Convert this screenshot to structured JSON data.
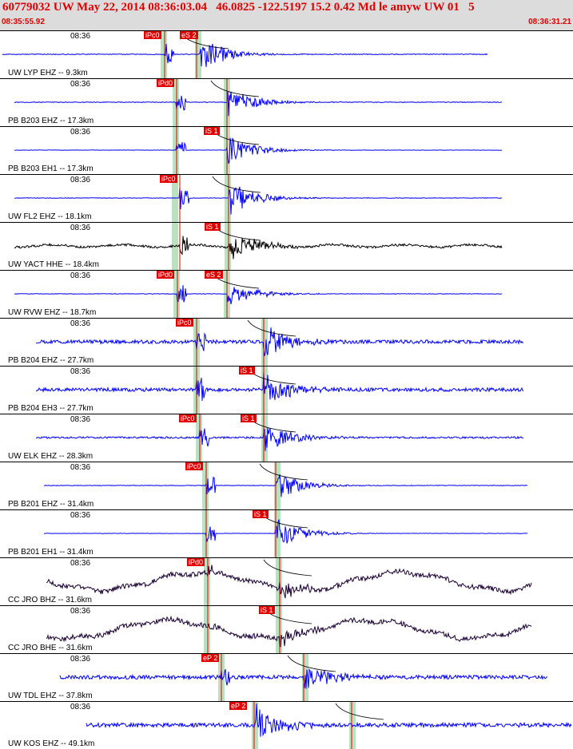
{
  "header": {
    "title": "60779032 UW May 22, 2014 08:36:03.04   46.0825 -122.5197 15.2 0.42 Md le amyw UW 01   5",
    "start_time": "08:35:55.92",
    "end_time": "08:36:31.21"
  },
  "colors": {
    "trace": "#0000ff",
    "trace_alt": "#000000",
    "trace_dark": "#1a0033",
    "pick": "#e00000",
    "window": "#b9e3c0",
    "header_bg": "#dcdcdc"
  },
  "panels": [
    {
      "time": "08:36",
      "label": "UW LYP EHZ -- 9.3km",
      "color": "trace",
      "picks": [
        "iPc0",
        "eS 2"
      ]
    },
    {
      "time": "08:36",
      "label": "PB B203 EHZ -- 17.3km",
      "color": "trace",
      "picks": [
        "iPd0"
      ]
    },
    {
      "time": "08:36",
      "label": "PB B203 EH1 -- 17.3km",
      "color": "trace",
      "picks": [
        "iS 1"
      ]
    },
    {
      "time": "08:36",
      "label": "UW FL2 EHZ -- 18.1km",
      "color": "trace",
      "picks": [
        "iPc0"
      ]
    },
    {
      "time": "08:36",
      "label": "UW YACT HHE -- 18.4km",
      "color": "trace_alt",
      "picks": [
        "iS 1"
      ]
    },
    {
      "time": "08:36",
      "label": "UW RVW EHZ -- 18.7km",
      "color": "trace",
      "picks": [
        "iPd0",
        "eS 2"
      ]
    },
    {
      "time": "08:36",
      "label": "PB B204 EHZ -- 27.7km",
      "color": "trace",
      "picks": [
        "iPc0"
      ]
    },
    {
      "time": "08:36",
      "label": "PB B204 EH3 -- 27.7km",
      "color": "trace",
      "picks": [
        "iS 1"
      ]
    },
    {
      "time": "08:36",
      "label": "UW ELK EHZ -- 28.3km",
      "color": "trace",
      "picks": [
        "iPc0",
        "iS 1"
      ]
    },
    {
      "time": "08:36",
      "label": "PB B201 EHZ -- 31.4km",
      "color": "trace",
      "picks": [
        "iPc0"
      ]
    },
    {
      "time": "08:36",
      "label": "PB B201 EH1 -- 31.4km",
      "color": "trace",
      "picks": [
        "iS 1"
      ]
    },
    {
      "time": "08:36",
      "label": "CC JRO BHZ -- 31.6km",
      "color": "trace_dark",
      "picks": [
        "iPd0"
      ]
    },
    {
      "time": "08:36",
      "label": "CC JRO BHE -- 31.6km",
      "color": "trace_dark",
      "picks": [
        "iS 1"
      ]
    },
    {
      "time": "08:36",
      "label": "UW TDL EHZ -- 37.8km",
      "color": "trace",
      "picks": [
        "eP 2"
      ]
    },
    {
      "time": "08:36",
      "label": "UW KOS EHZ -- 49.1km",
      "color": "trace",
      "picks": [
        "eP 2"
      ]
    }
  ]
}
